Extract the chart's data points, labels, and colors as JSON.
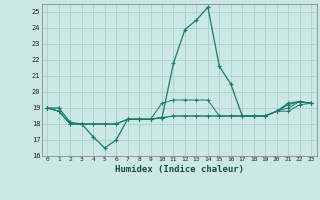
{
  "title": "",
  "xlabel": "Humidex (Indice chaleur)",
  "ylabel": "",
  "bg_color": "#cce8e4",
  "grid_color": "#aacfcb",
  "line_color": "#1a7a6e",
  "xlim": [
    -0.5,
    23.5
  ],
  "ylim": [
    16,
    25.5
  ],
  "yticks": [
    16,
    17,
    18,
    19,
    20,
    21,
    22,
    23,
    24,
    25
  ],
  "xticks": [
    0,
    1,
    2,
    3,
    4,
    5,
    6,
    7,
    8,
    9,
    10,
    11,
    12,
    13,
    14,
    15,
    16,
    17,
    18,
    19,
    20,
    21,
    22,
    23
  ],
  "series": [
    [
      19.0,
      19.0,
      18.1,
      18.0,
      17.2,
      16.5,
      17.0,
      18.3,
      18.3,
      18.3,
      18.4,
      21.8,
      23.9,
      24.5,
      25.3,
      21.6,
      20.5,
      18.5,
      18.5,
      18.5,
      18.8,
      19.3,
      19.4,
      19.3
    ],
    [
      19.0,
      18.8,
      18.0,
      18.0,
      18.0,
      18.0,
      18.0,
      18.3,
      18.3,
      18.3,
      18.4,
      18.5,
      18.5,
      18.5,
      18.5,
      18.5,
      18.5,
      18.5,
      18.5,
      18.5,
      18.8,
      19.2,
      19.4,
      19.3
    ],
    [
      19.0,
      18.8,
      18.0,
      18.0,
      18.0,
      18.0,
      18.0,
      18.3,
      18.3,
      18.3,
      19.3,
      19.5,
      19.5,
      19.5,
      19.5,
      18.5,
      18.5,
      18.5,
      18.5,
      18.5,
      18.8,
      19.0,
      19.4,
      19.3
    ],
    [
      19.0,
      18.8,
      18.0,
      18.0,
      18.0,
      18.0,
      18.0,
      18.3,
      18.3,
      18.3,
      18.4,
      18.5,
      18.5,
      18.5,
      18.5,
      18.5,
      18.5,
      18.5,
      18.5,
      18.5,
      18.8,
      18.8,
      19.2,
      19.3
    ]
  ]
}
